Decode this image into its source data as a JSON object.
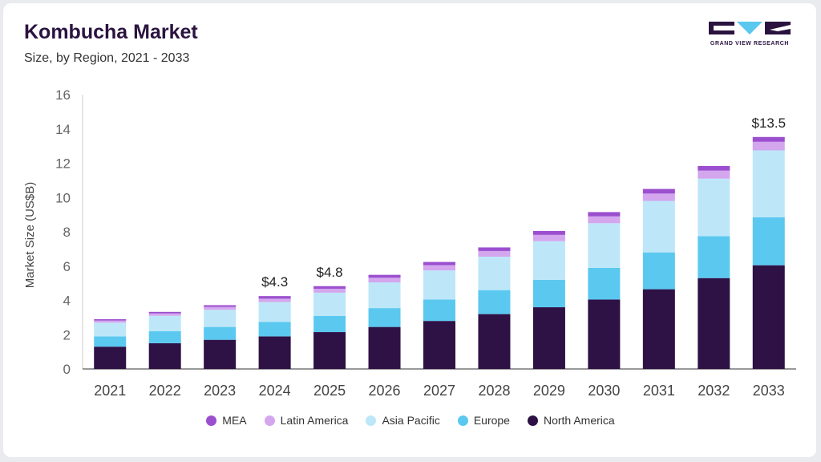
{
  "header": {
    "title": "Kombucha Market",
    "subtitle": "Size, by Region, 2021 - 2033",
    "logo_text": "GRAND VIEW RESEARCH"
  },
  "colors": {
    "MEA": "#9b4fcf",
    "Latin America": "#d3a6ee",
    "Asia Pacific": "#bde7f8",
    "Europe": "#5bc8f0",
    "North America": "#2e1145",
    "brand": "#2b1340"
  },
  "legend": {
    "items": [
      {
        "label": "MEA",
        "icon": "circle-swatch"
      },
      {
        "label": "Latin America",
        "icon": "circle-swatch"
      },
      {
        "label": "Asia Pacific",
        "icon": "circle-swatch"
      },
      {
        "label": "Europe",
        "icon": "circle-swatch"
      },
      {
        "label": "North America",
        "icon": "circle-swatch"
      }
    ]
  },
  "chart_data": {
    "type": "bar",
    "stacked": true,
    "title": "Kombucha Market",
    "subtitle": "Size, by Region, 2021 - 2033",
    "xlabel": "",
    "ylabel": "Market Size (US$B)",
    "ylim": [
      0,
      16
    ],
    "yticks": [
      0,
      2,
      4,
      6,
      8,
      10,
      12,
      14,
      16
    ],
    "grid": false,
    "legend_position": "bottom",
    "categories": [
      "2021",
      "2022",
      "2023",
      "2024",
      "2025",
      "2026",
      "2027",
      "2028",
      "2029",
      "2030",
      "2031",
      "2032",
      "2033"
    ],
    "series": [
      {
        "name": "North America",
        "values": [
          1.3,
          1.5,
          1.7,
          1.9,
          2.15,
          2.45,
          2.8,
          3.2,
          3.6,
          4.05,
          4.65,
          5.3,
          6.05
        ]
      },
      {
        "name": "Europe",
        "values": [
          0.6,
          0.7,
          0.75,
          0.85,
          0.95,
          1.1,
          1.25,
          1.4,
          1.6,
          1.85,
          2.15,
          2.45,
          2.8
        ]
      },
      {
        "name": "Asia Pacific",
        "values": [
          0.8,
          0.9,
          1.0,
          1.15,
          1.35,
          1.5,
          1.7,
          1.95,
          2.25,
          2.6,
          3.0,
          3.35,
          3.9
        ]
      },
      {
        "name": "Latin America",
        "values": [
          0.12,
          0.14,
          0.17,
          0.2,
          0.23,
          0.27,
          0.3,
          0.33,
          0.37,
          0.4,
          0.43,
          0.47,
          0.5
        ]
      },
      {
        "name": "MEA",
        "values": [
          0.08,
          0.09,
          0.1,
          0.15,
          0.15,
          0.17,
          0.19,
          0.21,
          0.23,
          0.25,
          0.27,
          0.27,
          0.28
        ]
      }
    ],
    "annotations": [
      {
        "category": "2024",
        "text": "$4.3"
      },
      {
        "category": "2025",
        "text": "$4.8"
      },
      {
        "category": "2033",
        "text": "$13.5"
      }
    ]
  }
}
